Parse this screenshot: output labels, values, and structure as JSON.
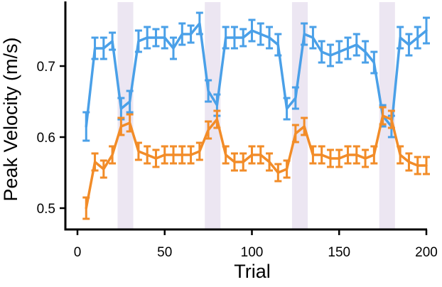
{
  "chart_data": {
    "type": "line",
    "xlabel": "Trial",
    "ylabel": "Peak Velocity (m/s)",
    "xlim": [
      0,
      200
    ],
    "ylim": [
      0.47,
      0.79
    ],
    "xticks": [
      0,
      50,
      100,
      150,
      200
    ],
    "xtick_labels": [
      "0",
      "50",
      "100",
      "150",
      "200"
    ],
    "yticks": [
      0.5,
      0.6,
      0.7
    ],
    "ytick_labels": [
      "0.5",
      "0.6",
      "0.7"
    ],
    "grid": false,
    "shaded_regions": [
      [
        23,
        32
      ],
      [
        73,
        82
      ],
      [
        123,
        132
      ],
      [
        173,
        182
      ]
    ],
    "shade_color": "#ece6f2",
    "x": [
      5,
      10,
      15,
      20,
      25,
      30,
      35,
      40,
      45,
      50,
      55,
      60,
      65,
      70,
      75,
      80,
      85,
      90,
      95,
      100,
      105,
      110,
      115,
      120,
      125,
      130,
      135,
      140,
      145,
      150,
      155,
      160,
      165,
      170,
      175,
      180,
      185,
      190,
      195,
      200
    ],
    "series": [
      {
        "color": "#4aa0e8",
        "values": [
          0.615,
          0.725,
          0.725,
          0.735,
          0.64,
          0.65,
          0.735,
          0.74,
          0.74,
          0.74,
          0.725,
          0.745,
          0.745,
          0.76,
          0.665,
          0.645,
          0.74,
          0.74,
          0.74,
          0.75,
          0.745,
          0.74,
          0.73,
          0.64,
          0.655,
          0.745,
          0.74,
          0.72,
          0.715,
          0.72,
          0.725,
          0.73,
          0.72,
          0.705,
          0.63,
          0.615,
          0.74,
          0.73,
          0.74,
          0.75
        ],
        "errors": [
          0.02,
          0.015,
          0.015,
          0.012,
          0.015,
          0.015,
          0.015,
          0.015,
          0.012,
          0.015,
          0.015,
          0.015,
          0.012,
          0.015,
          0.015,
          0.015,
          0.015,
          0.015,
          0.012,
          0.015,
          0.015,
          0.015,
          0.015,
          0.015,
          0.015,
          0.015,
          0.015,
          0.015,
          0.015,
          0.015,
          0.015,
          0.015,
          0.015,
          0.015,
          0.015,
          0.015,
          0.015,
          0.015,
          0.015,
          0.018
        ]
      },
      {
        "color": "#f28c28",
        "values": [
          0.5,
          0.565,
          0.555,
          0.575,
          0.615,
          0.62,
          0.58,
          0.575,
          0.57,
          0.575,
          0.575,
          0.575,
          0.575,
          0.58,
          0.61,
          0.625,
          0.575,
          0.565,
          0.565,
          0.575,
          0.575,
          0.565,
          0.55,
          0.555,
          0.605,
          0.615,
          0.575,
          0.575,
          0.57,
          0.57,
          0.575,
          0.575,
          0.57,
          0.575,
          0.63,
          0.625,
          0.575,
          0.565,
          0.56,
          0.56
        ],
        "errors": [
          0.015,
          0.012,
          0.012,
          0.012,
          0.012,
          0.012,
          0.012,
          0.012,
          0.012,
          0.012,
          0.012,
          0.012,
          0.012,
          0.012,
          0.012,
          0.012,
          0.012,
          0.012,
          0.012,
          0.012,
          0.012,
          0.012,
          0.012,
          0.012,
          0.012,
          0.012,
          0.012,
          0.012,
          0.012,
          0.012,
          0.012,
          0.012,
          0.012,
          0.012,
          0.012,
          0.012,
          0.012,
          0.012,
          0.012,
          0.012
        ]
      }
    ]
  }
}
